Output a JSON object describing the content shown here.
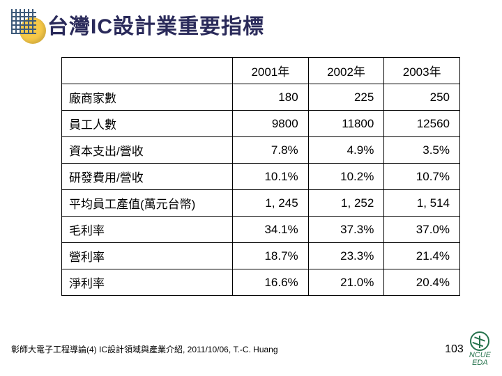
{
  "title": "台灣IC設計業重要指標",
  "table": {
    "years": [
      "2001年",
      "2002年",
      "2003年"
    ],
    "rows": [
      {
        "label": "廠商家數",
        "values": [
          "180",
          "225",
          "250"
        ]
      },
      {
        "label": "員工人數",
        "values": [
          "9800",
          "11800",
          "12560"
        ]
      },
      {
        "label": "資本支出/營收",
        "values": [
          "7.8%",
          "4.9%",
          "3.5%"
        ]
      },
      {
        "label": "研發費用/營收",
        "values": [
          "10.1%",
          "10.2%",
          "10.7%"
        ]
      },
      {
        "label": "平均員工產值(萬元台幣)",
        "values": [
          "1, 245",
          "1, 252",
          "1, 514"
        ]
      },
      {
        "label": "毛利率",
        "values": [
          "34.1%",
          "37.3%",
          "37.0%"
        ]
      },
      {
        "label": "營利率",
        "values": [
          "18.7%",
          "23.3%",
          "21.4%"
        ]
      },
      {
        "label": "淨利率",
        "values": [
          "16.6%",
          "21.0%",
          "20.4%"
        ]
      }
    ]
  },
  "footer": {
    "text": "彰師大電子工程導論(4) IC設計領域與產業介紹, 2011/10/06, T.-C. Huang",
    "page": "103",
    "org1": "NCUE",
    "org2": "EDA"
  }
}
